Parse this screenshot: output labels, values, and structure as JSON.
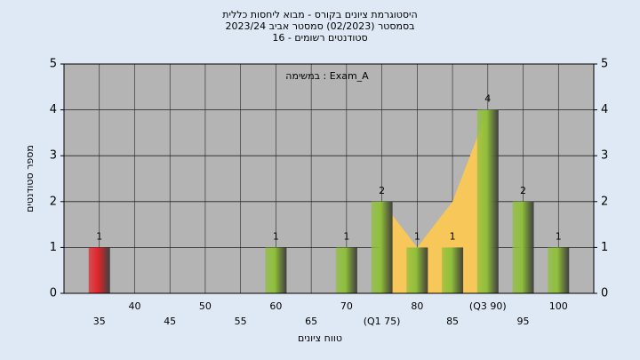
{
  "chart_data": {
    "type": "bar",
    "title": "היסטוגרמת ציונים בקורס - מבוא ליחסות כללית",
    "subtitle": "בסמסטר (02/2023) סמסטר אביב 2023/24",
    "subtitle2": "סטודנטים רשומים - 16",
    "annotation": "במשימה : Exam_A",
    "x_label": "טווח ציונים",
    "y_label": "מספר סטודנטים",
    "categories": [
      "35",
      "40",
      "45",
      "50",
      "55",
      "60",
      "65",
      "70",
      "(Q1 75)",
      "80",
      "85",
      "(Q3 90)",
      "95",
      "100"
    ],
    "values": [
      1,
      0,
      0,
      0,
      0,
      1,
      0,
      1,
      2,
      1,
      1,
      4,
      2,
      1
    ],
    "colors": [
      "#e0252a",
      "#8fbf3a",
      "#8fbf3a",
      "#8fbf3a",
      "#8fbf3a",
      "#8fbf3a",
      "#8fbf3a",
      "#8fbf3a",
      "#8fbf3a",
      "#8fbf3a",
      "#8fbf3a",
      "#8fbf3a",
      "#8fbf3a",
      "#8fbf3a"
    ],
    "area_values": [
      null,
      null,
      null,
      null,
      null,
      null,
      null,
      null,
      2,
      1,
      2,
      4,
      null,
      null
    ],
    "area_color": "#f7c75a",
    "ylim": [
      0,
      5
    ],
    "yticks": [
      0,
      1,
      2,
      3,
      4,
      5
    ],
    "y2ticks": [
      0,
      1,
      2,
      3,
      4,
      5
    ],
    "grid": true
  }
}
